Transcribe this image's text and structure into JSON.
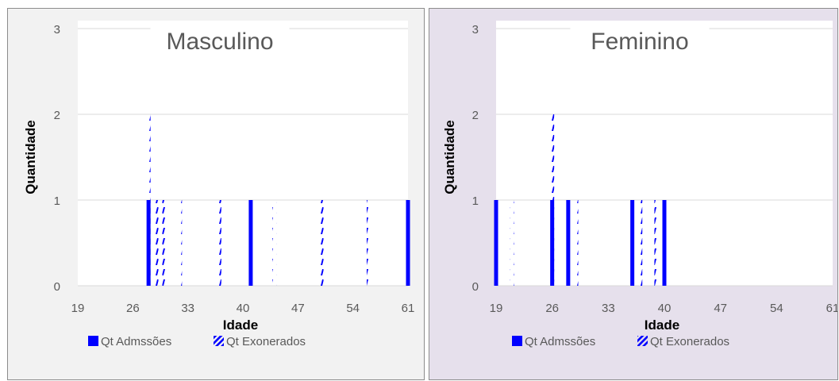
{
  "colors": {
    "admissions": "#0000ff",
    "exonerated": "#0000ff",
    "grid": "#d9d9d9",
    "text": "#595959"
  },
  "chart_data": [
    {
      "type": "bar",
      "title": "Masculino",
      "xlabel": "Idade",
      "ylabel": "Quantidade",
      "xlim": [
        19,
        61
      ],
      "ylim": [
        0,
        3
      ],
      "xticks": [
        "19",
        "26",
        "33",
        "40",
        "47",
        "54",
        "61"
      ],
      "yticks": [
        "0",
        "1",
        "2",
        "3"
      ],
      "grid": true,
      "legend_position": "bottom",
      "series": [
        {
          "name": "Qt Admssões",
          "style": "solid",
          "x": [
            28,
            41,
            61
          ],
          "values": [
            1,
            1,
            1
          ]
        },
        {
          "name": "Qt Exonerados",
          "style": "dashed",
          "x": [
            28,
            29,
            30,
            32,
            37,
            44,
            50,
            56
          ],
          "values": [
            2,
            1,
            1,
            1,
            1,
            1,
            1,
            1
          ]
        }
      ]
    },
    {
      "type": "bar",
      "title": "Feminino",
      "xlabel": "Idade",
      "ylabel": "Quantidade",
      "xlim": [
        19,
        61
      ],
      "ylim": [
        0,
        3
      ],
      "xticks": [
        "19",
        "26",
        "33",
        "40",
        "47",
        "54",
        "61"
      ],
      "yticks": [
        "0",
        "1",
        "2",
        "3"
      ],
      "grid": true,
      "legend_position": "bottom",
      "series": [
        {
          "name": "Qt Admssões",
          "style": "solid",
          "x": [
            19,
            26,
            28,
            36,
            40
          ],
          "values": [
            1,
            1,
            1,
            1,
            1
          ]
        },
        {
          "name": "Qt Exonerados",
          "style": "dashed",
          "x": [
            21,
            26,
            29,
            37,
            39
          ],
          "values": [
            1,
            2,
            1,
            1,
            1
          ]
        }
      ]
    }
  ]
}
